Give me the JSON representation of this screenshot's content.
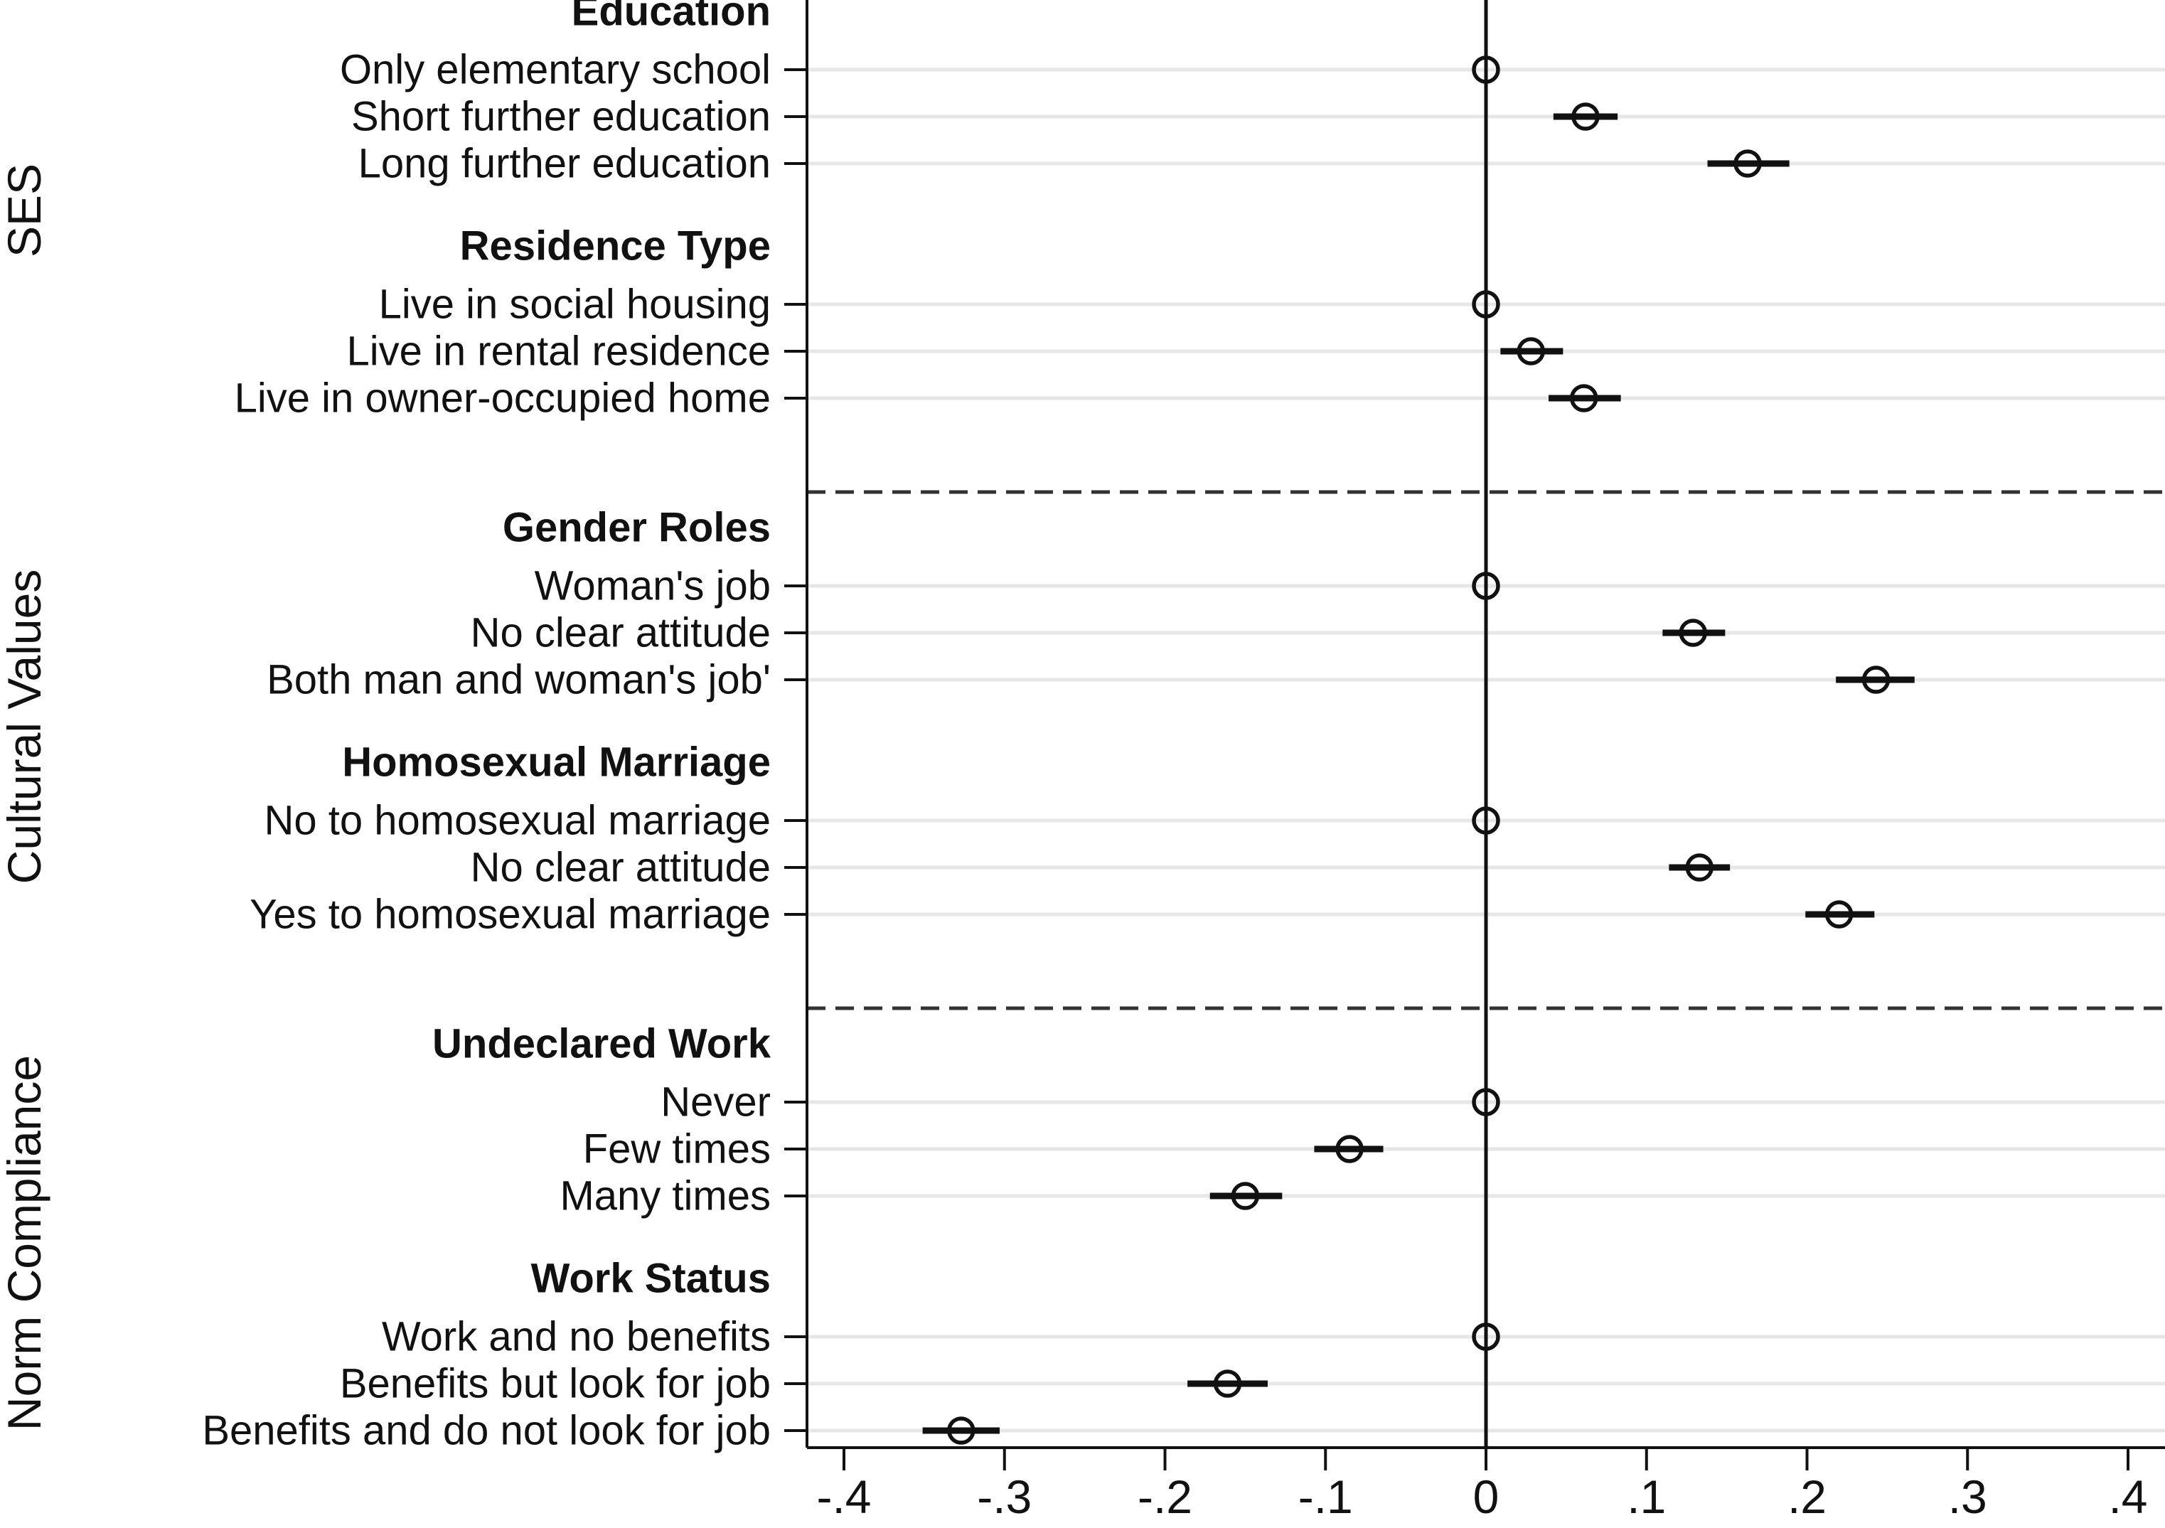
{
  "chart_data": {
    "type": "scatter",
    "subtype": "coefficient-plot",
    "title": "",
    "xlabel": "",
    "ylabel": "",
    "xlim": [
      -0.4,
      0.4
    ],
    "xticks": [
      -0.4,
      -0.3,
      -0.2,
      -0.1,
      0,
      0.1,
      0.2,
      0.3,
      0.4
    ],
    "xtick_labels": [
      "-.4",
      "-.3",
      "-.2",
      "-.1",
      "0",
      ".1",
      ".2",
      ".3",
      ".4"
    ],
    "reference_line_x": 0,
    "grid": true,
    "marker": "hollow-circle",
    "colors": {
      "line": "#111111",
      "grid": "#e6e6e6",
      "divider": "#333333"
    },
    "sections": [
      {
        "name": "SES",
        "groups": [
          {
            "name": "Education",
            "items": [
              {
                "label": "Only elementary school",
                "estimate": 0,
                "ci": [
                  0,
                  0
                ]
              },
              {
                "label": "Short further education",
                "estimate": 0.062,
                "ci": [
                  0.042,
                  0.082
                ]
              },
              {
                "label": "Long further education",
                "estimate": 0.163,
                "ci": [
                  0.138,
                  0.189
                ]
              }
            ]
          },
          {
            "name": "Residence Type",
            "items": [
              {
                "label": "Live in social housing",
                "estimate": 0,
                "ci": [
                  0,
                  0
                ]
              },
              {
                "label": "Live in rental residence",
                "estimate": 0.028,
                "ci": [
                  0.009,
                  0.048
                ]
              },
              {
                "label": "Live in owner-occupied home",
                "estimate": 0.061,
                "ci": [
                  0.039,
                  0.084
                ]
              }
            ]
          }
        ]
      },
      {
        "name": "Cultural Values",
        "groups": [
          {
            "name": "Gender Roles",
            "items": [
              {
                "label": "Woman's job",
                "estimate": 0,
                "ci": [
                  0,
                  0
                ]
              },
              {
                "label": "No clear attitude",
                "estimate": 0.129,
                "ci": [
                  0.11,
                  0.149
                ]
              },
              {
                "label": "Both man and woman's job'",
                "estimate": 0.243,
                "ci": [
                  0.218,
                  0.267
                ]
              }
            ]
          },
          {
            "name": "Homosexual Marriage",
            "items": [
              {
                "label": "No to homosexual marriage",
                "estimate": 0,
                "ci": [
                  0,
                  0
                ]
              },
              {
                "label": "No clear attitude",
                "estimate": 0.133,
                "ci": [
                  0.114,
                  0.152
                ]
              },
              {
                "label": "Yes to homosexual marriage",
                "estimate": 0.22,
                "ci": [
                  0.199,
                  0.242
                ]
              }
            ]
          }
        ]
      },
      {
        "name": "Norm Compliance",
        "groups": [
          {
            "name": "Undeclared Work",
            "items": [
              {
                "label": "Never",
                "estimate": 0,
                "ci": [
                  0,
                  0
                ]
              },
              {
                "label": "Few times",
                "estimate": -0.085,
                "ci": [
                  -0.107,
                  -0.064
                ]
              },
              {
                "label": "Many times",
                "estimate": -0.15,
                "ci": [
                  -0.172,
                  -0.127
                ]
              }
            ]
          },
          {
            "name": "Work Status",
            "items": [
              {
                "label": "Work and no benefits",
                "estimate": 0,
                "ci": [
                  0,
                  0
                ]
              },
              {
                "label": "Benefits but look for job",
                "estimate": -0.161,
                "ci": [
                  -0.186,
                  -0.136
                ]
              },
              {
                "label": "Benefits and do not look for job",
                "estimate": -0.327,
                "ci": [
                  -0.351,
                  -0.303
                ]
              }
            ]
          }
        ]
      }
    ]
  }
}
